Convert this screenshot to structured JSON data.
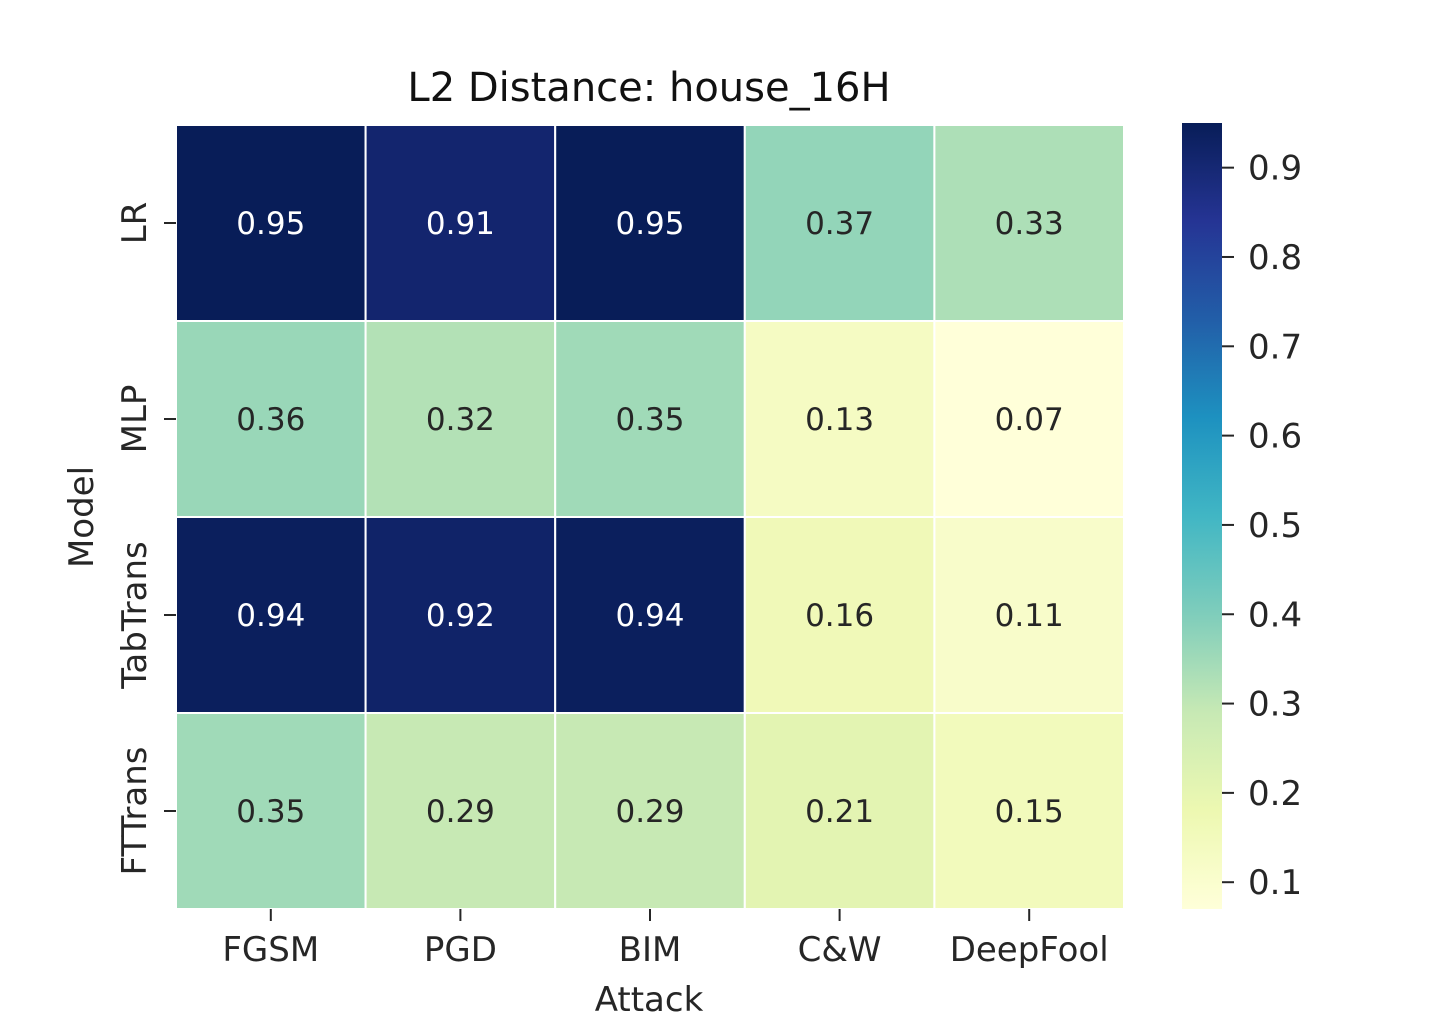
{
  "chart_data": {
    "type": "heatmap",
    "title": "L2 Distance: house_16H",
    "xlabel": "Attack",
    "ylabel": "Model",
    "x_categories": [
      "FGSM",
      "PGD",
      "BIM",
      "C&W",
      "DeepFool"
    ],
    "y_categories": [
      "LR",
      "MLP",
      "TabTrans",
      "FTTrans"
    ],
    "values": [
      [
        0.95,
        0.91,
        0.95,
        0.37,
        0.33
      ],
      [
        0.36,
        0.32,
        0.35,
        0.13,
        0.07
      ],
      [
        0.94,
        0.92,
        0.94,
        0.16,
        0.11
      ],
      [
        0.35,
        0.29,
        0.29,
        0.21,
        0.15
      ]
    ],
    "value_labels": [
      [
        "0.95",
        "0.91",
        "0.95",
        "0.37",
        "0.33"
      ],
      [
        "0.36",
        "0.32",
        "0.35",
        "0.13",
        "0.07"
      ],
      [
        "0.94",
        "0.92",
        "0.94",
        "0.16",
        "0.11"
      ],
      [
        "0.35",
        "0.29",
        "0.29",
        "0.21",
        "0.15"
      ]
    ],
    "colormap": "YlGnBu",
    "colorbar": {
      "range": [
        0.07,
        0.95
      ],
      "ticks": [
        0.1,
        0.2,
        0.3,
        0.4,
        0.5,
        0.6,
        0.7,
        0.8,
        0.9
      ],
      "tick_labels": [
        "0.1",
        "0.2",
        "0.3",
        "0.4",
        "0.5",
        "0.6",
        "0.7",
        "0.8",
        "0.9"
      ]
    },
    "cell_border_color": "#ffffff",
    "annotation_colors": {
      "light": "#ffffff",
      "dark": "#262626"
    }
  }
}
